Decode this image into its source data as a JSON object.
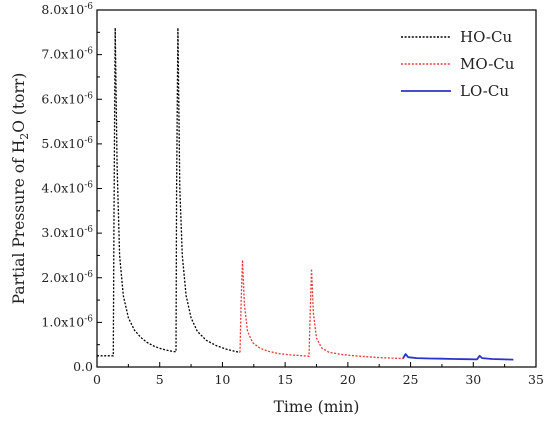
{
  "chart_data": {
    "type": "line",
    "xlabel": "Time (min)",
    "ylabel": "Partial Pressure of H₂O (torr)",
    "xlim": [
      0,
      35
    ],
    "ylim": [
      0,
      8e-06
    ],
    "xticks": [
      0,
      5,
      10,
      15,
      20,
      25,
      30,
      35
    ],
    "xtick_labels": [
      "0",
      "5",
      "10",
      "15",
      "20",
      "25",
      "30",
      "35"
    ],
    "yticks": [
      0,
      1e-06,
      2e-06,
      3e-06,
      4e-06,
      5e-06,
      6e-06,
      7e-06,
      8e-06
    ],
    "ytick_labels": [
      "0.0",
      "1.0x10-6",
      "2.0x10-6",
      "3.0x10-6",
      "4.0x10-6",
      "5.0x10-6",
      "6.0x10-6",
      "7.0x10-6",
      "8.0x10-6"
    ],
    "legend_position": "top-right",
    "grid": false,
    "series": [
      {
        "name": "HO-Cu",
        "color": "#000000",
        "style": "dotted",
        "points": [
          [
            0,
            2.5e-07
          ],
          [
            1.3,
            2.5e-07
          ],
          [
            1.35,
            3e-06
          ],
          [
            1.45,
            7.6e-06
          ],
          [
            1.6,
            4.5e-06
          ],
          [
            1.8,
            2.5e-06
          ],
          [
            2.1,
            1.6e-06
          ],
          [
            2.5,
            1.1e-06
          ],
          [
            3.0,
            8.2e-07
          ],
          [
            3.5,
            6.6e-07
          ],
          [
            4.0,
            5.5e-07
          ],
          [
            4.6,
            4.6e-07
          ],
          [
            5.2,
            4e-07
          ],
          [
            5.8,
            3.6e-07
          ],
          [
            6.3,
            3.4e-07
          ],
          [
            6.35,
            4e-06
          ],
          [
            6.45,
            7.6e-06
          ],
          [
            6.6,
            4e-06
          ],
          [
            6.8,
            2.5e-06
          ],
          [
            7.1,
            1.6e-06
          ],
          [
            7.5,
            1.1e-06
          ],
          [
            8.0,
            8e-07
          ],
          [
            8.7,
            6e-07
          ],
          [
            9.5,
            4.8e-07
          ],
          [
            10.3,
            4e-07
          ],
          [
            11.0,
            3.5e-07
          ],
          [
            11.4,
            3.3e-07
          ]
        ]
      },
      {
        "name": "MO-Cu",
        "color": "#e8393a",
        "style": "dotted",
        "points": [
          [
            11.4,
            3.3e-07
          ],
          [
            11.5,
            1.5e-06
          ],
          [
            11.6,
            2.4e-06
          ],
          [
            11.75,
            1.4e-06
          ],
          [
            12.0,
            8e-07
          ],
          [
            12.4,
            5.5e-07
          ],
          [
            13.0,
            4.2e-07
          ],
          [
            13.7,
            3.5e-07
          ],
          [
            14.5,
            3e-07
          ],
          [
            15.5,
            2.7e-07
          ],
          [
            16.5,
            2.5e-07
          ],
          [
            16.9,
            2.4e-07
          ],
          [
            17.0,
            1.2e-06
          ],
          [
            17.1,
            2.2e-06
          ],
          [
            17.25,
            1.2e-06
          ],
          [
            17.5,
            6.5e-07
          ],
          [
            17.9,
            4.3e-07
          ],
          [
            18.5,
            3.3e-07
          ],
          [
            19.5,
            2.8e-07
          ],
          [
            20.5,
            2.5e-07
          ],
          [
            21.5,
            2.3e-07
          ],
          [
            22.5,
            2.1e-07
          ],
          [
            23.5,
            2e-07
          ],
          [
            24.4,
            1.9e-07
          ]
        ]
      },
      {
        "name": "LO-Cu",
        "color": "#2a35c8",
        "style": "solid",
        "points": [
          [
            24.4,
            1.9e-07
          ],
          [
            24.6,
            2.9e-07
          ],
          [
            24.8,
            2.2e-07
          ],
          [
            25.5,
            2e-07
          ],
          [
            26.5,
            1.9e-07
          ],
          [
            27.5,
            1.85e-07
          ],
          [
            28.5,
            1.8e-07
          ],
          [
            29.5,
            1.75e-07
          ],
          [
            30.3,
            1.7e-07
          ],
          [
            30.5,
            2.5e-07
          ],
          [
            30.7,
            2e-07
          ],
          [
            31.5,
            1.8e-07
          ],
          [
            32.5,
            1.7e-07
          ],
          [
            33.2,
            1.65e-07
          ]
        ]
      }
    ]
  }
}
